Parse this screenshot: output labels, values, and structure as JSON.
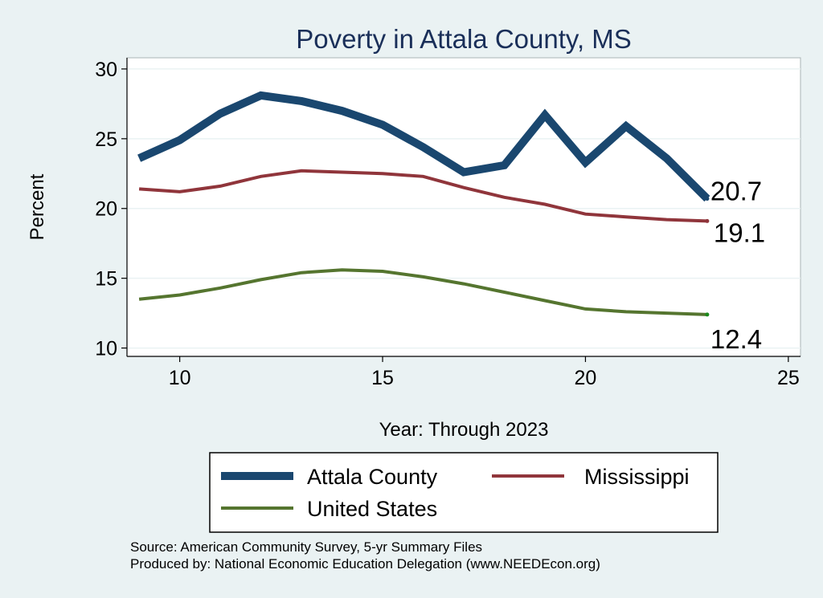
{
  "chart_data": {
    "type": "line",
    "title": "Poverty in Attala County, MS",
    "xlabel": "Year: Through 2023",
    "ylabel": "Percent",
    "xlim": [
      8.7,
      25.3
    ],
    "ylim": [
      9.4,
      30.8
    ],
    "x_ticks": [
      10,
      15,
      20,
      25
    ],
    "y_ticks": [
      10,
      15,
      20,
      25,
      30
    ],
    "grid": true,
    "legend_position": "bottom",
    "x": [
      9,
      10,
      11,
      12,
      13,
      14,
      15,
      16,
      17,
      18,
      19,
      20,
      21,
      22,
      23
    ],
    "series": [
      {
        "name": "Attala County",
        "color": "#1a476f",
        "values": [
          23.6,
          24.9,
          26.8,
          28.1,
          27.7,
          27.0,
          26.0,
          24.4,
          22.6,
          23.1,
          26.7,
          23.3,
          25.9,
          23.6,
          20.7
        ],
        "end_label": "20.7"
      },
      {
        "name": "Mississippi",
        "color": "#90353b",
        "values": [
          21.4,
          21.2,
          21.6,
          22.3,
          22.7,
          22.6,
          22.5,
          22.3,
          21.5,
          20.8,
          20.3,
          19.6,
          19.4,
          19.2,
          19.1
        ],
        "end_label": "19.1"
      },
      {
        "name": "United States",
        "color": "#55752f",
        "values": [
          13.5,
          13.8,
          14.3,
          14.9,
          15.4,
          15.6,
          15.5,
          15.1,
          14.6,
          14.0,
          13.4,
          12.8,
          12.6,
          12.5,
          12.4
        ],
        "end_label": "12.4"
      }
    ]
  },
  "footer": {
    "source": "Source: American Community Survey, 5-yr Summary Files",
    "produced_by": "Produced by: National Economic Education Delegation (www.NEEDEcon.org)"
  }
}
